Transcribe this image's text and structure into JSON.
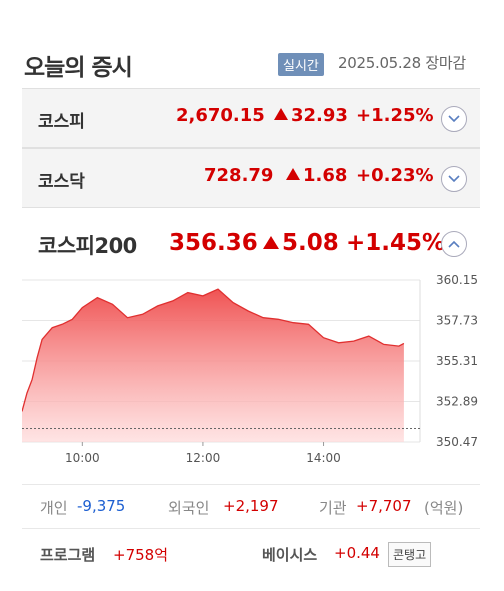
{
  "header": {
    "title": "오늘의 증시",
    "realtime_badge": "실시간",
    "date_status": "2025.05.28 장마감"
  },
  "indices": [
    {
      "name": "코스피",
      "value": "2,670.15",
      "change": "32.93",
      "percent": "+1.25%"
    },
    {
      "name": "코스닥",
      "value": "728.79",
      "change": "1.68",
      "percent": "+0.23%"
    }
  ],
  "kospi200": {
    "name": "코스피200",
    "value": "356.36",
    "change": "5.08",
    "percent": "+1.45%"
  },
  "colors": {
    "up": "#d30000",
    "down": "#1d5fd1",
    "badge": "#6f8fb8"
  },
  "chart_data": {
    "type": "area",
    "x_ticks": [
      "10:00",
      "12:00",
      "14:00"
    ],
    "y_ticks": [
      "360.15",
      "357.73",
      "355.31",
      "352.89",
      "350.47"
    ],
    "ylim": [
      350.47,
      360.15
    ],
    "previous_close": 351.28,
    "x": [
      "09:00",
      "09:05",
      "09:10",
      "09:15",
      "09:20",
      "09:30",
      "09:40",
      "09:50",
      "10:00",
      "10:15",
      "10:30",
      "10:45",
      "11:00",
      "11:15",
      "11:30",
      "11:45",
      "12:00",
      "12:15",
      "12:30",
      "12:45",
      "13:00",
      "13:15",
      "13:30",
      "13:45",
      "14:00",
      "14:15",
      "14:30",
      "14:45",
      "15:00",
      "15:15",
      "15:20"
    ],
    "values": [
      352.3,
      353.4,
      354.2,
      355.5,
      356.6,
      357.3,
      357.5,
      357.8,
      358.5,
      359.1,
      358.7,
      357.9,
      358.1,
      358.6,
      358.9,
      359.4,
      359.2,
      359.6,
      358.8,
      358.3,
      357.9,
      357.8,
      357.6,
      357.5,
      356.7,
      356.4,
      356.5,
      356.8,
      356.3,
      356.2,
      356.36
    ]
  },
  "investors": {
    "individual_label": "개인",
    "individual_value": "-9,375",
    "foreign_label": "외국인",
    "foreign_value": "+2,197",
    "institution_label": "기관",
    "institution_value": "+7,707",
    "unit": "(억원)"
  },
  "bottom": {
    "program_label": "프로그램",
    "program_value": "+758억",
    "basis_label": "베이시스",
    "basis_value": "+0.44",
    "contango_label": "콘탱고"
  }
}
